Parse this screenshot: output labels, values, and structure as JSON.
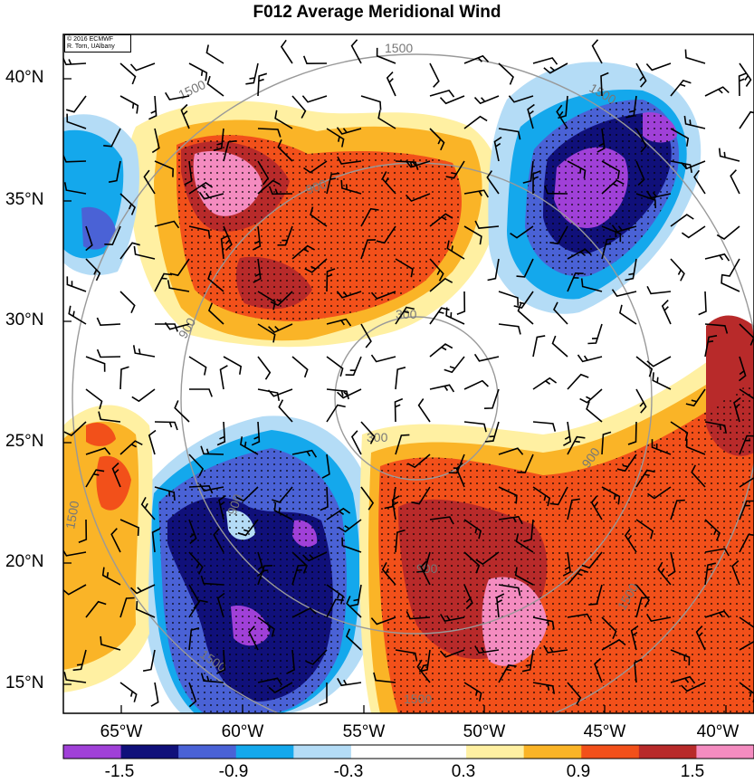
{
  "title": "F012 Average Meridional Wind",
  "credit": {
    "line1": "© 2016 ECMWF",
    "line2": "R. Torn, UAlbany"
  },
  "latitude_labels": [
    "40°N",
    "35°N",
    "30°N",
    "25°N",
    "20°N",
    "15°N"
  ],
  "longitude_labels": [
    "65°W",
    "60°W",
    "55°W",
    "50°W",
    "45°W",
    "40°W"
  ],
  "contour_labels": [
    "1500",
    "1500",
    "900",
    "900",
    "300",
    "300",
    "900",
    "900",
    "900",
    "1500",
    "1500",
    "1500",
    "1500",
    "1500"
  ],
  "colorbar": {
    "tick_labels": [
      "-1.5",
      "-0.9",
      "-0.3",
      "0.3",
      "0.9",
      "1.5"
    ],
    "colors": [
      "#a040d8",
      "#10107a",
      "#4a62d6",
      "#14a8ec",
      "#b4dcf6",
      "#ffffff",
      "#ffffff",
      "#fff0a2",
      "#fab427",
      "#f2501a",
      "#b82a2a",
      "#f48cc0"
    ]
  },
  "colors": {
    "purple": "#a040d8",
    "navy": "#10107a",
    "blue": "#4a62d6",
    "sky": "#14a8ec",
    "lightblue": "#b4dcf6",
    "yellow": "#fff0a2",
    "orange": "#fab427",
    "red": "#f2501a",
    "darkred": "#b82a2a",
    "pink": "#f48cc0"
  }
}
